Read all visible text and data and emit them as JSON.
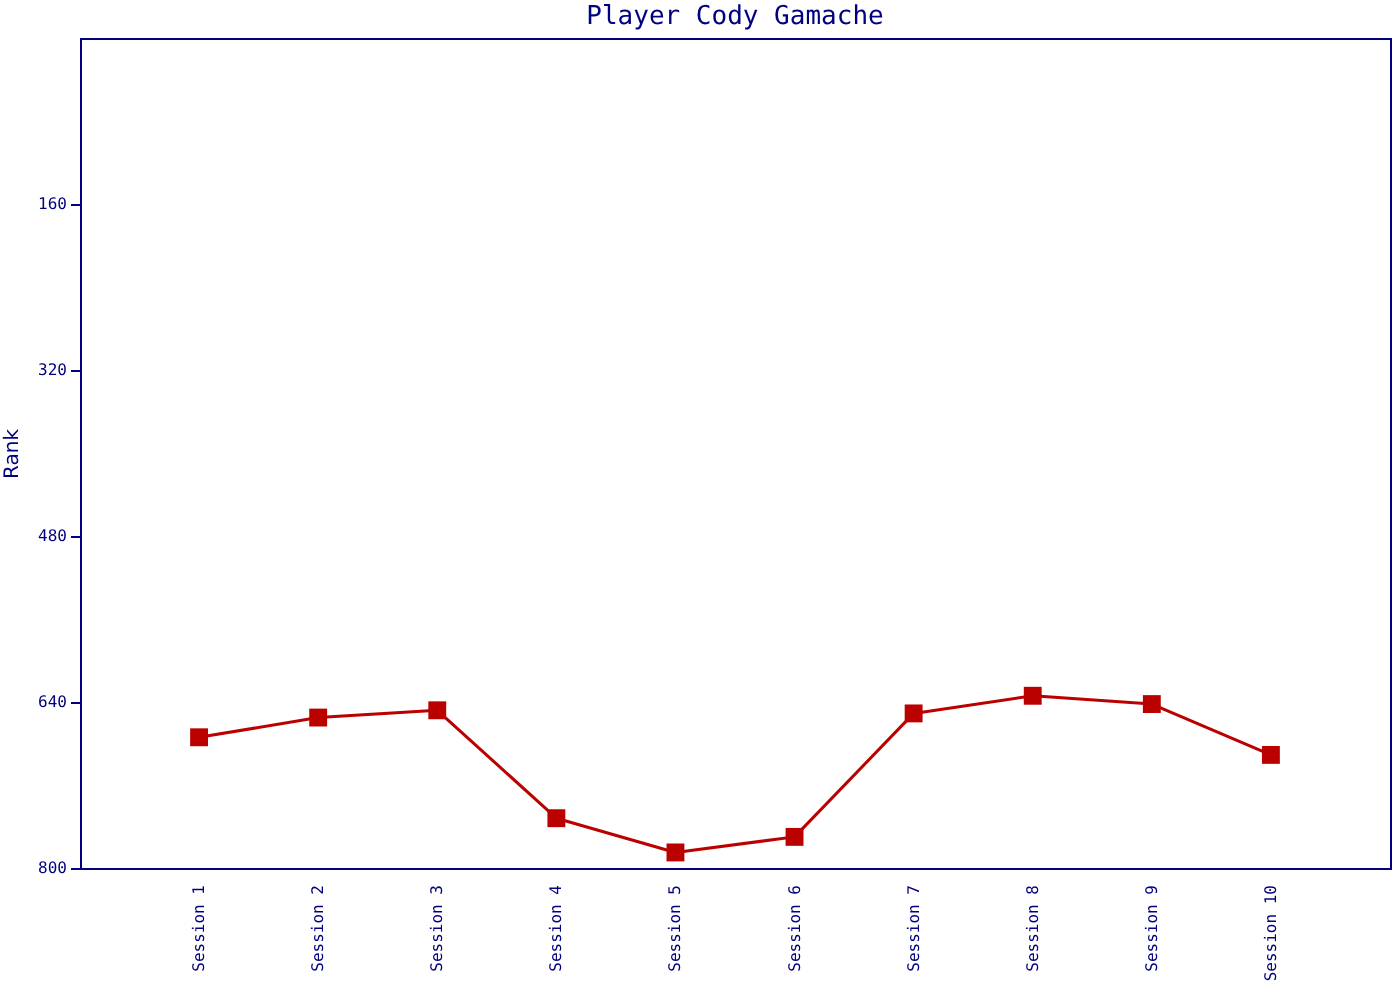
{
  "chart_data": {
    "type": "line",
    "title": "Player Cody Gamache",
    "ylabel": "Rank",
    "categories": [
      "Session 1",
      "Session 2",
      "Session 3",
      "Session 4",
      "Session 5",
      "Session 6",
      "Session 7",
      "Session 8",
      "Session 9",
      "Session 10"
    ],
    "series": [
      {
        "color": "#bb0000",
        "values": [
          674,
          655,
          648,
          752,
          785,
          770,
          651,
          634,
          642,
          691
        ]
      }
    ],
    "ylim": [
      800,
      0
    ],
    "yticks": [
      160,
      320,
      480,
      640,
      800
    ],
    "grid": false,
    "marker": "square",
    "line_style": "solid"
  }
}
